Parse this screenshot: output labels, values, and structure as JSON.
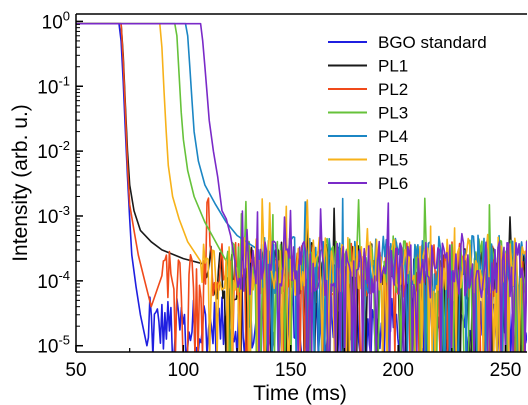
{
  "chart_data": {
    "type": "line",
    "xlabel": "Time (ms)",
    "ylabel": "Intensity (arb. u.)",
    "xlim": [
      50,
      260
    ],
    "ylim": [
      8e-06,
      1.3
    ],
    "yscale": "log",
    "x_ticks": [
      {
        "value": 50,
        "label": "50"
      },
      {
        "value": 100,
        "label": "100"
      },
      {
        "value": 150,
        "label": "150"
      },
      {
        "value": 200,
        "label": "200"
      },
      {
        "value": 250,
        "label": "250"
      }
    ],
    "y_ticks": [
      {
        "value": 1,
        "base": "10",
        "exp": "0"
      },
      {
        "value": 0.1,
        "base": "10",
        "exp": "-1"
      },
      {
        "value": 0.01,
        "base": "10",
        "exp": "-2"
      },
      {
        "value": 0.001,
        "base": "10",
        "exp": "-3"
      },
      {
        "value": 0.0001,
        "base": "10",
        "exp": "-4"
      },
      {
        "value": 1e-05,
        "base": "10",
        "exp": "-5"
      }
    ],
    "legend_position": "top-right",
    "series": [
      {
        "name": "BGO  standard",
        "color": "#1f1fe0",
        "t0": 70,
        "floor": 2e-05,
        "points": [
          [
            50,
            0.92
          ],
          [
            70,
            0.92
          ],
          [
            71,
            0.5
          ],
          [
            72,
            0.12
          ],
          [
            73,
            0.02
          ],
          [
            74,
            0.004
          ],
          [
            75,
            0.0009
          ],
          [
            76,
            0.00025
          ],
          [
            78,
            8e-05
          ],
          [
            80,
            3e-05
          ],
          [
            83,
            1e-05
          ]
        ]
      },
      {
        "name": "PL1",
        "color": "#1a1a1a",
        "t0": 71,
        "floor": 0.00014,
        "points": [
          [
            50,
            0.92
          ],
          [
            71,
            0.92
          ],
          [
            72,
            0.3
          ],
          [
            73,
            0.05
          ],
          [
            74,
            0.01
          ],
          [
            75,
            0.003
          ],
          [
            77,
            0.0012
          ],
          [
            80,
            0.0006
          ],
          [
            85,
            0.0004
          ],
          [
            90,
            0.0003
          ],
          [
            100,
            0.00022
          ],
          [
            110,
            0.00018
          ]
        ]
      },
      {
        "name": "PL2",
        "color": "#f04a1a",
        "t0": 71,
        "floor": 0.00015,
        "points": [
          [
            50,
            0.92
          ],
          [
            71,
            0.92
          ],
          [
            72,
            0.25
          ],
          [
            73,
            0.04
          ],
          [
            74,
            0.006
          ],
          [
            75,
            0.0015
          ],
          [
            77,
            0.0006
          ],
          [
            79,
            0.00025
          ],
          [
            82,
            0.0001
          ],
          [
            85,
            4e-05
          ],
          [
            90,
            0.00012
          ]
        ]
      },
      {
        "name": "PL3",
        "color": "#66c23a",
        "t0": 97,
        "floor": 0.00016,
        "points": [
          [
            50,
            0.92
          ],
          [
            96,
            0.92
          ],
          [
            97,
            0.6
          ],
          [
            98,
            0.15
          ],
          [
            99,
            0.04
          ],
          [
            100,
            0.015
          ],
          [
            102,
            0.005
          ],
          [
            105,
            0.002
          ],
          [
            110,
            0.0008
          ],
          [
            115,
            0.0004
          ],
          [
            120,
            0.0002
          ]
        ]
      },
      {
        "name": "PL4",
        "color": "#1b86c4",
        "t0": 102,
        "floor": 0.00018,
        "points": [
          [
            50,
            0.92
          ],
          [
            101,
            0.92
          ],
          [
            102,
            0.6
          ],
          [
            103,
            0.2
          ],
          [
            104,
            0.06
          ],
          [
            105,
            0.02
          ],
          [
            107,
            0.007
          ],
          [
            110,
            0.003
          ],
          [
            115,
            0.0015
          ],
          [
            120,
            0.0008
          ],
          [
            125,
            0.0005
          ],
          [
            135,
            0.0003
          ]
        ]
      },
      {
        "name": "PL5",
        "color": "#f7b21a",
        "t0": 90,
        "floor": 0.00017,
        "points": [
          [
            50,
            0.92
          ],
          [
            89,
            0.92
          ],
          [
            90,
            0.4
          ],
          [
            91,
            0.08
          ],
          [
            92,
            0.02
          ],
          [
            93,
            0.006
          ],
          [
            95,
            0.002
          ],
          [
            98,
            0.0009
          ],
          [
            102,
            0.0004
          ],
          [
            108,
            0.0002
          ]
        ]
      },
      {
        "name": "PL6",
        "color": "#7a2ac8",
        "t0": 110,
        "floor": 0.00015,
        "points": [
          [
            50,
            0.92
          ],
          [
            108,
            0.92
          ],
          [
            109,
            0.5
          ],
          [
            110,
            0.2
          ],
          [
            111,
            0.08
          ],
          [
            112,
            0.03
          ],
          [
            114,
            0.01
          ],
          [
            116,
            0.004
          ],
          [
            118,
            0.0012
          ],
          [
            120,
            0.0009
          ],
          [
            122,
            0.0005
          ],
          [
            124,
            0.0002
          ]
        ]
      }
    ]
  }
}
